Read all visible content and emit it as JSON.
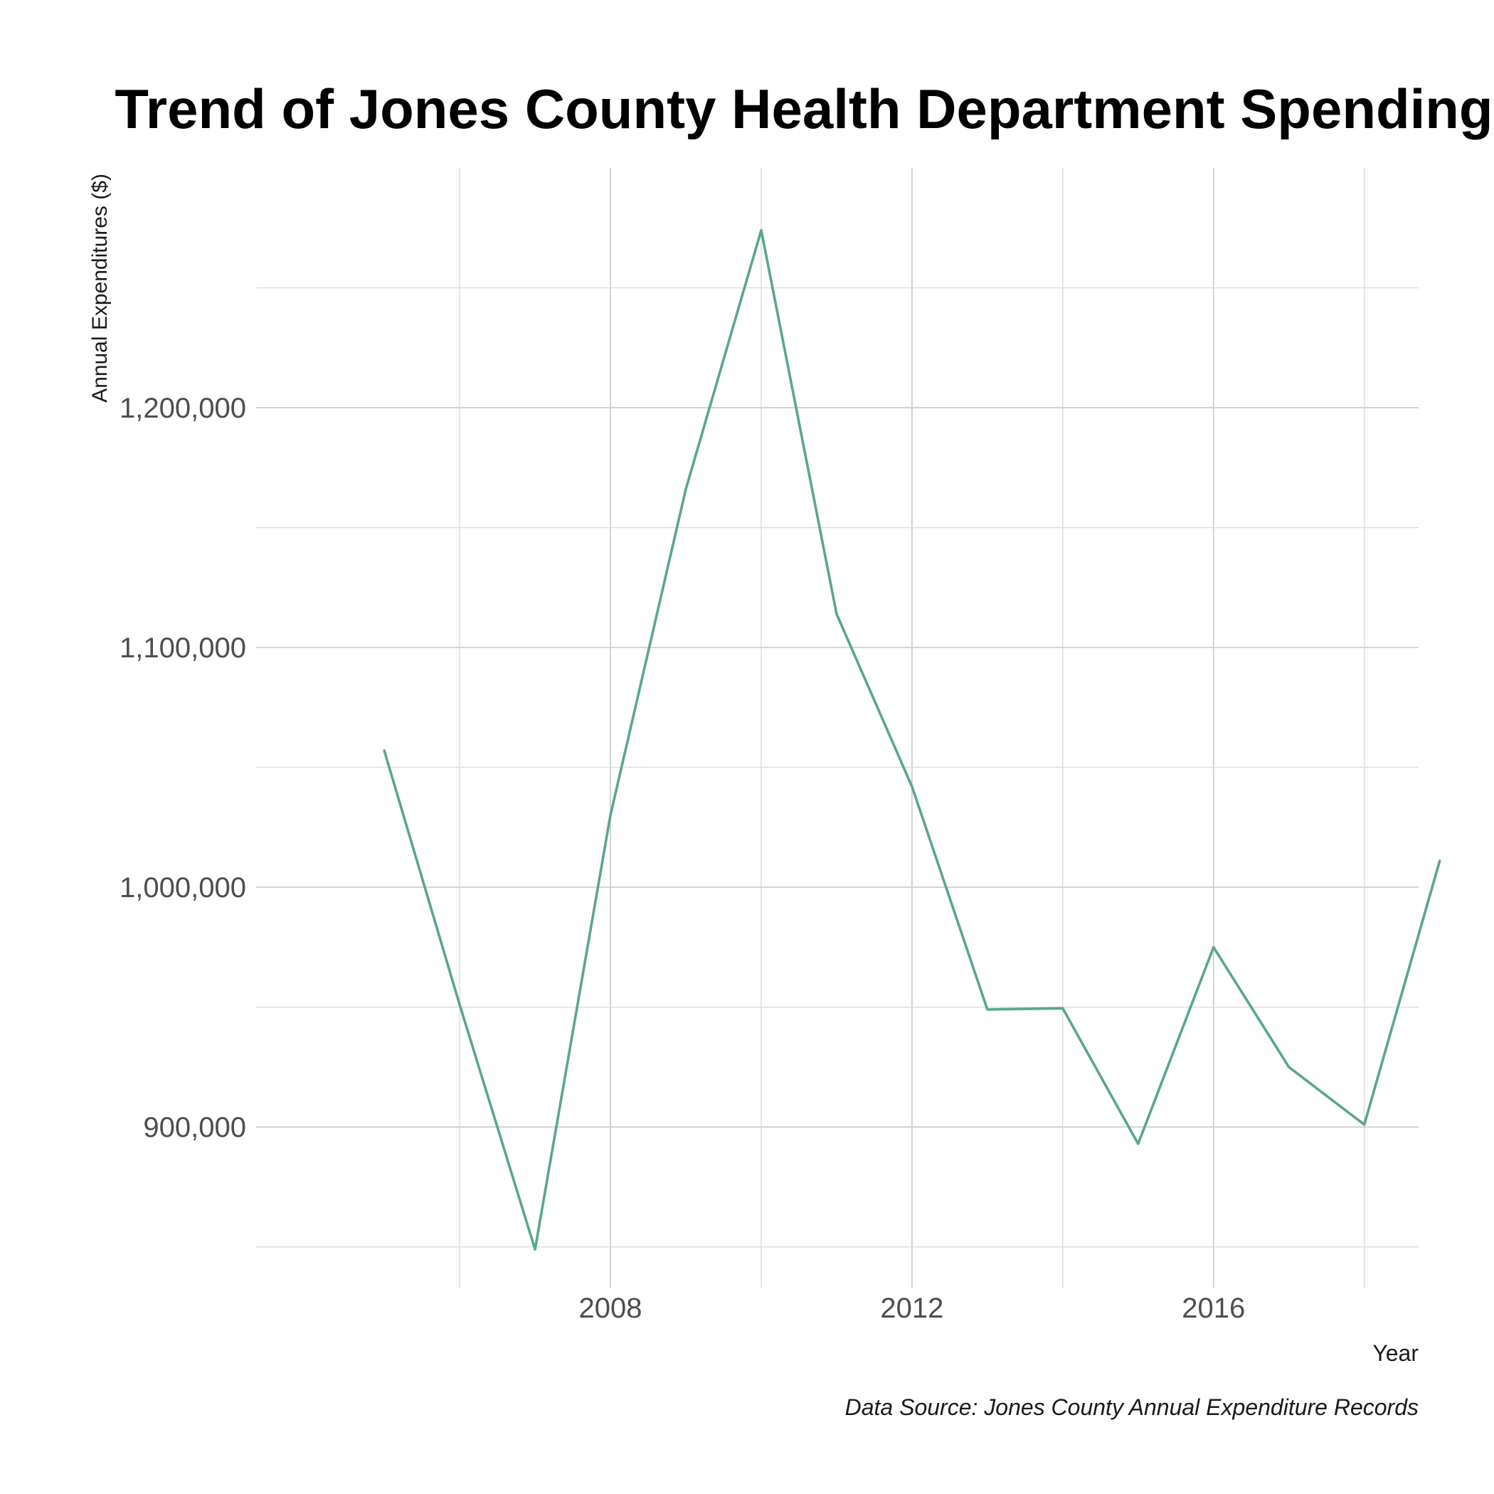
{
  "chart_data": {
    "type": "line",
    "title": "Trend of Jones County Health Department Spending",
    "xlabel": "Year",
    "ylabel": "Annual Expenditures ($)",
    "caption": "Data Source: Jones County Annual Expenditure Records",
    "x": [
      2005,
      2006,
      2007,
      2008,
      2009,
      2010,
      2011,
      2012,
      2013,
      2014,
      2015,
      2016,
      2017,
      2018,
      2019
    ],
    "series": [
      {
        "values": [
          1057000,
          951000,
          849000,
          1030000,
          1166000,
          1274000,
          1114000,
          1042000,
          949000,
          949500,
          893000,
          975000,
          925000,
          901000,
          1011000
        ]
      }
    ],
    "xlim": [
      2003.3,
      2018.72
    ],
    "ylim": [
      833000,
      1300000
    ],
    "x_major_ticks": [
      2008,
      2012,
      2016
    ],
    "x_major_tick_labels": [
      "2008",
      "2012",
      "2016"
    ],
    "x_minor_gridlines": [
      2006,
      2010,
      2014,
      2018
    ],
    "y_major_ticks": [
      900000,
      1000000,
      1100000,
      1200000
    ],
    "y_major_tick_labels": [
      "900,000",
      "1,000,000",
      "1,100,000",
      "1,200,000"
    ],
    "y_minor_gridlines": [
      850000,
      950000,
      1050000,
      1150000,
      1250000
    ],
    "grid": true,
    "legend": "none",
    "colors": {
      "line": "#5aa68c",
      "grid": "#cfcfcf",
      "background": "#ffffff"
    }
  }
}
